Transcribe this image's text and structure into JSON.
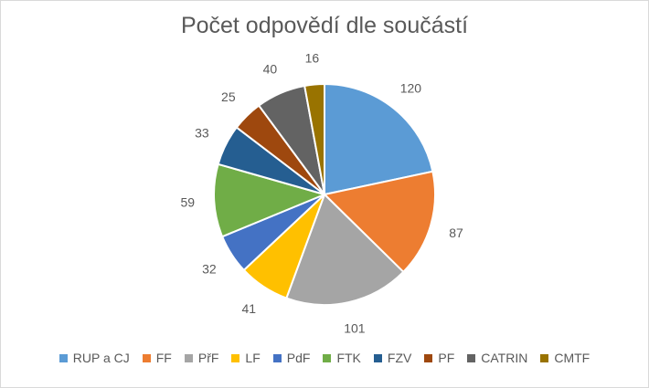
{
  "chart_data": {
    "type": "pie",
    "title": "Počet odpovědí dle součástí",
    "categories": [
      "RUP a CJ",
      "FF",
      "PřF",
      "LF",
      "PdF",
      "FTK",
      "FZV",
      "PF",
      "CATRIN",
      "CMTF"
    ],
    "values": [
      120,
      87,
      101,
      41,
      32,
      59,
      33,
      25,
      40,
      16
    ],
    "colors": [
      "#5b9bd5",
      "#ed7d31",
      "#a5a5a5",
      "#ffc000",
      "#4472c4",
      "#70ad47",
      "#255e91",
      "#9e480e",
      "#636363",
      "#997300"
    ],
    "legend_position": "bottom",
    "data_labels": true
  }
}
